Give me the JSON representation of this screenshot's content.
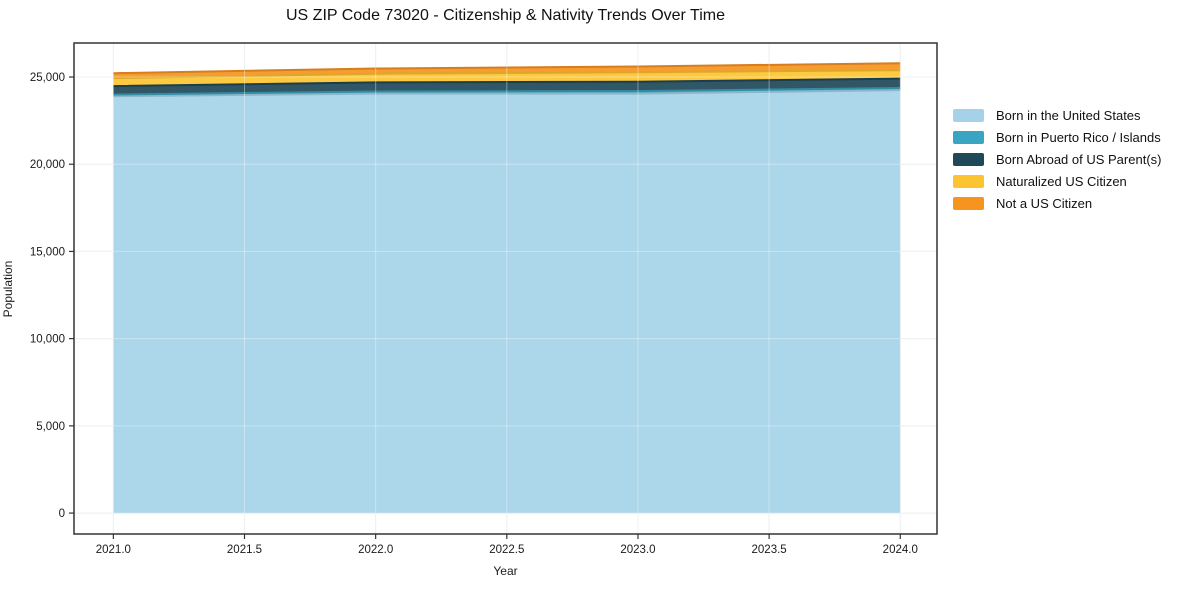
{
  "figure": {
    "title": "US ZIP Code 73020 - Citizenship & Nativity Trends Over Time",
    "xlabel": "Year",
    "ylabel": "Population"
  },
  "colors": {
    "born_us": "#a5d2e8",
    "born_pr_islands": "#3aa5c2",
    "born_abroad": "#1f4858",
    "naturalized": "#fdc431",
    "not_citizen": "#f79420",
    "gridline": "#e7e7e7",
    "spine": "#333333",
    "tick_text": "#1a1a1a"
  },
  "chart_data": {
    "type": "area",
    "stacked": true,
    "title": "US ZIP Code 73020 - Citizenship & Nativity Trends Over Time",
    "xlabel": "Year",
    "ylabel": "Population",
    "grid": true,
    "legend_position": "right",
    "x": [
      2021,
      2022,
      2023,
      2024
    ],
    "x_tick_values": [
      2021.0,
      2021.5,
      2022.0,
      2022.5,
      2023.0,
      2023.5,
      2024.0
    ],
    "x_tick_labels": [
      "2021.0",
      "2021.5",
      "2022.0",
      "2022.5",
      "2023.0",
      "2023.5",
      "2024.0"
    ],
    "y_tick_values": [
      0,
      5000,
      10000,
      15000,
      20000,
      25000
    ],
    "y_tick_labels": [
      "0",
      "5,000",
      "10,000",
      "15,000",
      "20,000",
      "25,000"
    ],
    "xlim": [
      2020.85,
      2024.14
    ],
    "ylim": [
      -1200,
      26950
    ],
    "series": [
      {
        "name": "Born in the United States",
        "slug": "born-us",
        "color": "#a5d2e8",
        "values": [
          23900,
          24050,
          24050,
          24250
        ]
      },
      {
        "name": "Born in Puerto Rico / Islands",
        "slug": "born-pr-islands",
        "color": "#3aa5c2",
        "values": [
          100,
          120,
          140,
          120
        ]
      },
      {
        "name": "Born Abroad of US Parent(s)",
        "slug": "born-abroad",
        "color": "#1f4858",
        "values": [
          480,
          520,
          540,
          540
        ]
      },
      {
        "name": "Naturalized US Citizen",
        "slug": "naturalized",
        "color": "#fdc431",
        "values": [
          460,
          500,
          540,
          480
        ]
      },
      {
        "name": "Not a US Citizen",
        "slug": "not-citizen",
        "color": "#f79420",
        "values": [
          280,
          300,
          330,
          400
        ]
      }
    ]
  }
}
